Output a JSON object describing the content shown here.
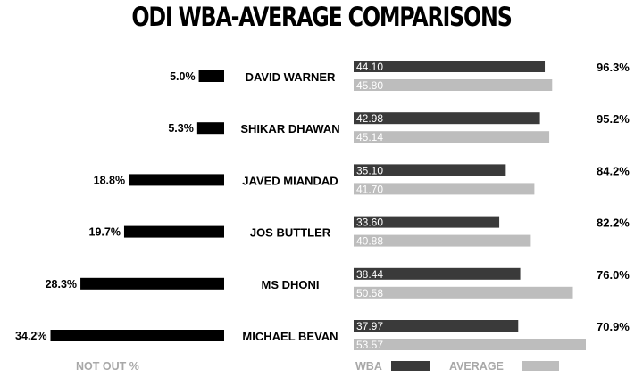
{
  "chart_data": {
    "type": "bar",
    "title": "ODI WBA-AVERAGE COMPARISONS",
    "categories": [
      "DAVID WARNER",
      "SHIKAR DHAWAN",
      "JAVED MIANDAD",
      "JOS BUTTLER",
      "MS DHONI",
      "MICHAEL BEVAN"
    ],
    "series": [
      {
        "name": "NOT OUT %",
        "values": [
          5.0,
          5.3,
          18.8,
          19.7,
          28.3,
          34.2
        ],
        "labels": [
          "5.0%",
          "5.3%",
          "18.8%",
          "19.7%",
          "28.3%",
          "34.2%"
        ],
        "color": "#000000"
      },
      {
        "name": "WBA",
        "values": [
          44.1,
          42.98,
          35.1,
          33.6,
          38.44,
          37.97
        ],
        "labels": [
          "44.10",
          "42.98",
          "35.10",
          "33.60",
          "38.44",
          "37.97"
        ],
        "color": "#3a3a3a"
      },
      {
        "name": "AVERAGE",
        "values": [
          45.8,
          45.14,
          41.7,
          40.88,
          50.58,
          53.57
        ],
        "labels": [
          "45.80",
          "45.14",
          "41.70",
          "40.88",
          "50.58",
          "53.57"
        ],
        "color": "#bdbdbd"
      }
    ],
    "ratio_labels": [
      "96.3%",
      "95.2%",
      "84.2%",
      "82.2%",
      "76.0%",
      "70.9%"
    ],
    "legend": {
      "not_out": "NOT OUT %",
      "wba": "WBA",
      "average": "AVERAGE"
    },
    "legend_color": "#a8a8a8"
  }
}
